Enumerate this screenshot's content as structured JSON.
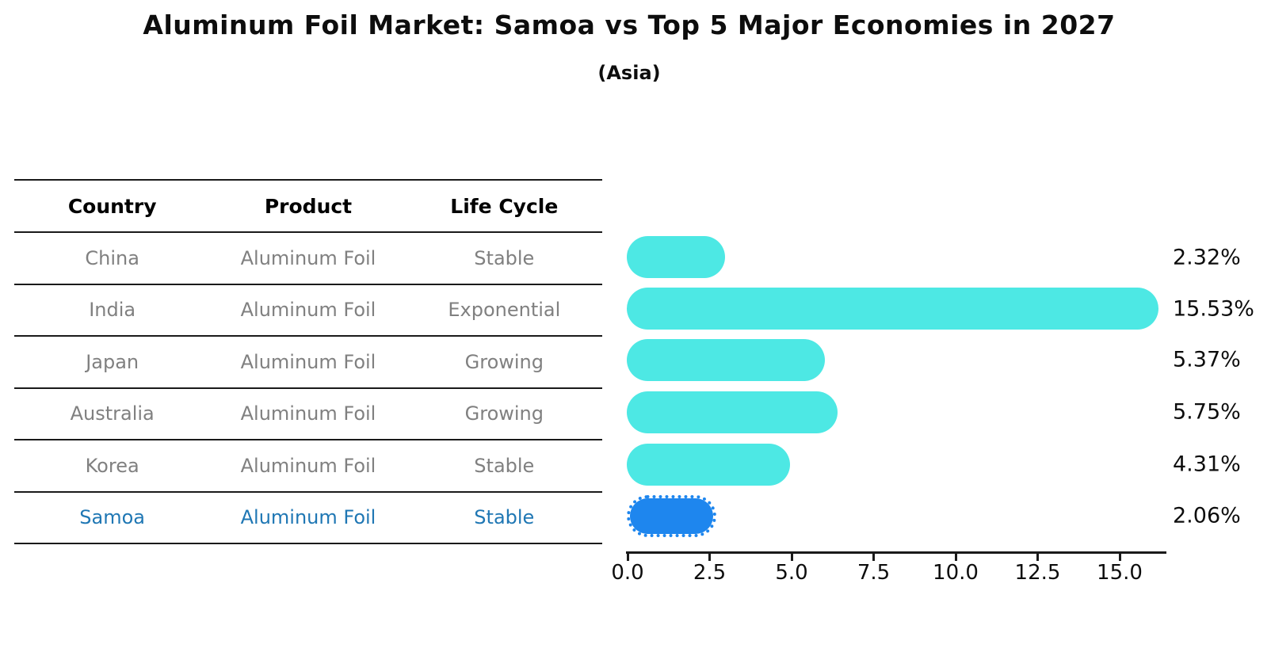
{
  "chart_data": {
    "type": "bar",
    "orientation": "horizontal",
    "title": "Aluminum Foil Market: Samoa vs Top 5 Major Economies in 2027",
    "subtitle": "(Asia)",
    "categories": [
      "China",
      "India",
      "Japan",
      "Australia",
      "Korea",
      "Samoa"
    ],
    "values": [
      2.32,
      15.53,
      5.37,
      5.75,
      4.31,
      2.06
    ],
    "value_labels": [
      "2.32%",
      "15.53%",
      "5.37%",
      "5.75%",
      "4.31%",
      "2.06%"
    ],
    "xlabel": "",
    "ylabel": "",
    "xlim": [
      0,
      16.4
    ],
    "x_ticks": [
      0.0,
      2.5,
      5.0,
      7.5,
      10.0,
      12.5,
      15.0
    ],
    "x_tick_labels": [
      "0.0",
      "2.5",
      "5.0",
      "7.5",
      "10.0",
      "12.5",
      "15.0"
    ],
    "grid": false,
    "legend": false,
    "highlight_index": 5,
    "colors": {
      "bar_default": "#4DE8E4",
      "bar_highlight": "#1E86EE",
      "highlight_text": "#1f77b4",
      "row_text": "#808080",
      "header_text": "#000000",
      "axis": "#1a1a1a"
    }
  },
  "table": {
    "headers": [
      "Country",
      "Product",
      "Life Cycle"
    ],
    "rows": [
      {
        "country": "China",
        "product": "Aluminum Foil",
        "life_cycle": "Stable",
        "highlight": false
      },
      {
        "country": "India",
        "product": "Aluminum Foil",
        "life_cycle": "Exponential",
        "highlight": false
      },
      {
        "country": "Japan",
        "product": "Aluminum Foil",
        "life_cycle": "Growing",
        "highlight": false
      },
      {
        "country": "Australia",
        "product": "Aluminum Foil",
        "life_cycle": "Growing",
        "highlight": false
      },
      {
        "country": "Korea",
        "product": "Aluminum Foil",
        "life_cycle": "Stable",
        "highlight": false
      },
      {
        "country": "Samoa",
        "product": "Aluminum Foil",
        "life_cycle": "Stable",
        "highlight": true
      }
    ]
  }
}
